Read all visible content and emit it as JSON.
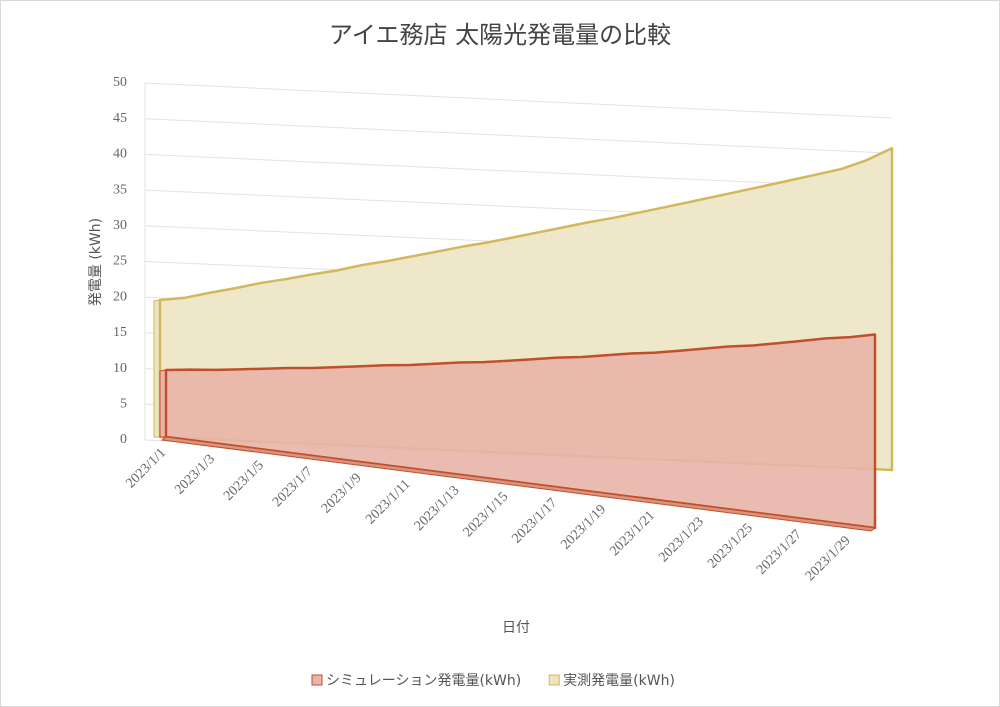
{
  "chart_data": {
    "type": "area",
    "title": "アイエ務店 太陽光発電量の比較",
    "xlabel": "日付",
    "ylabel": "発電量 (kWh)",
    "categories": [
      "2023/1/1",
      null,
      "2023/1/3",
      null,
      "2023/1/5",
      null,
      "2023/1/7",
      null,
      "2023/1/9",
      null,
      "2023/1/11",
      null,
      "2023/1/13",
      null,
      "2023/1/15",
      null,
      "2023/1/17",
      null,
      "2023/1/19",
      null,
      "2023/1/21",
      null,
      "2023/1/23",
      null,
      "2023/1/25",
      null,
      "2023/1/27",
      null,
      "2023/1/29",
      null
    ],
    "series": [
      {
        "name": "シミュレーション発電量(kWh)",
        "color": "#c0502c",
        "fill": "#e8b5a8",
        "values": [
          10,
          10.2,
          10.3,
          10.5,
          10.7,
          10.9,
          11,
          11.2,
          11.4,
          11.6,
          11.7,
          11.9,
          12.1,
          12.2,
          12.4,
          12.6,
          12.8,
          12.9,
          13.1,
          13.3,
          13.4,
          13.6,
          13.8,
          14,
          14.1,
          14.3,
          14.5,
          14.7,
          14.8,
          15
        ]
      },
      {
        "name": "実測発電量(kWh)",
        "color": "#d2b85a",
        "fill": "#ede4c4",
        "values": [
          20,
          20.4,
          21.2,
          21.9,
          22.7,
          23.3,
          24,
          24.6,
          25.4,
          26,
          26.7,
          27.4,
          28.1,
          28.7,
          29.4,
          30.1,
          30.8,
          31.5,
          32.1,
          32.8,
          33.5,
          34.2,
          34.9,
          35.6,
          36.3,
          37,
          37.7,
          38.4,
          39.5,
          41
        ]
      }
    ],
    "ylim": [
      0,
      50
    ],
    "yticks": [
      0,
      5,
      10,
      15,
      20,
      25,
      30,
      35,
      40,
      45,
      50
    ],
    "grid": true,
    "legend": "bottom"
  }
}
